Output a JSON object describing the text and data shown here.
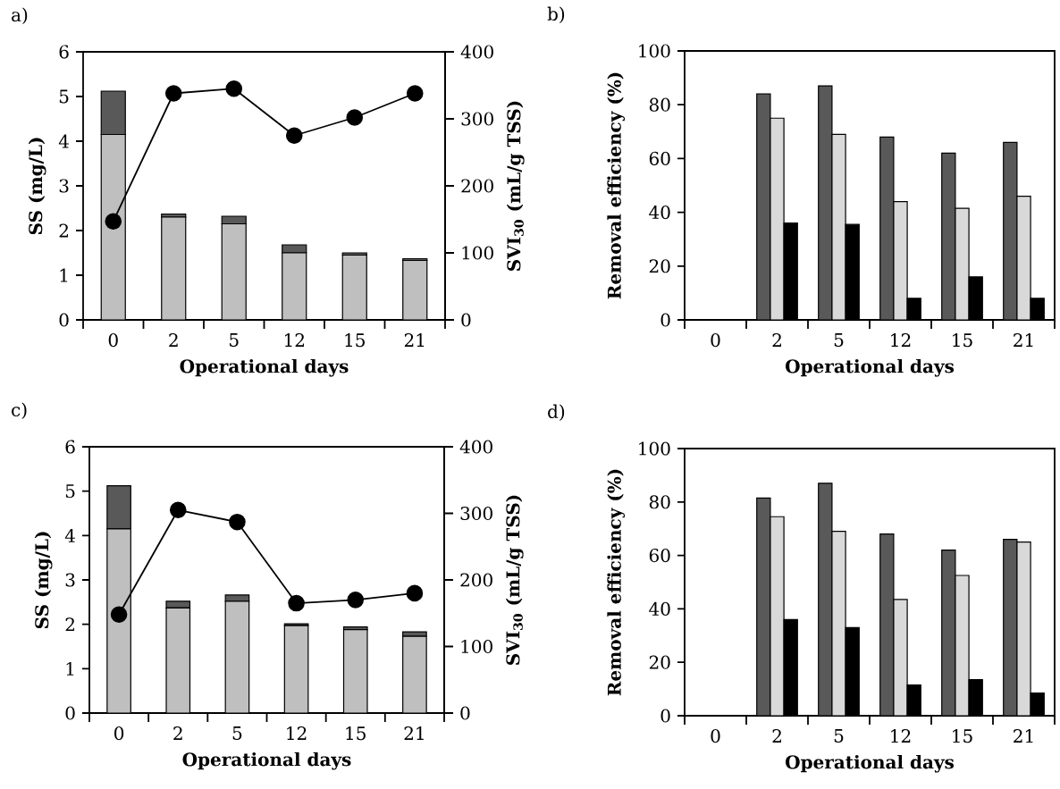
{
  "chart_data": [
    {
      "type": "bar",
      "title": "a)",
      "stacked": true,
      "categories": [
        "0",
        "2",
        "5",
        "12",
        "15",
        "21"
      ],
      "xlabel": "Operational days",
      "ylabel": "SS (mg/L)",
      "y2label": "SVI$_{30}$ (mL/g TSS)",
      "ylim": [
        0,
        6
      ],
      "yticks": [
        0,
        1,
        2,
        3,
        4,
        5,
        6
      ],
      "y2lim": [
        0,
        400
      ],
      "y2ticks": [
        0,
        100,
        200,
        300,
        400
      ],
      "series": [
        {
          "type": "bar",
          "color": "#bfbfbf",
          "values": [
            4.15,
            2.3,
            2.15,
            1.5,
            1.45,
            1.33
          ]
        },
        {
          "type": "bar",
          "color": "#595959",
          "values": [
            0.97,
            0.07,
            0.17,
            0.18,
            0.05,
            0.04
          ]
        },
        {
          "type": "line",
          "axis": "y2",
          "color": "#000000",
          "marker": "circle",
          "values": [
            147,
            338,
            345,
            275,
            302,
            338
          ]
        }
      ]
    },
    {
      "type": "bar",
      "title": "b)",
      "categories": [
        "0",
        "2",
        "5",
        "12",
        "15",
        "21"
      ],
      "xlabel": "Operational days",
      "ylabel": "Removal efficiency (%)",
      "ylim": [
        0,
        100
      ],
      "yticks": [
        0,
        20,
        40,
        60,
        80,
        100
      ],
      "series": [
        {
          "color": "#595959",
          "values": [
            null,
            84,
            87,
            68,
            62,
            66
          ]
        },
        {
          "color": "#d9d9d9",
          "values": [
            null,
            75,
            69,
            44,
            41.5,
            46
          ]
        },
        {
          "color": "#000000",
          "values": [
            null,
            36,
            35.5,
            8,
            16,
            8
          ]
        }
      ]
    },
    {
      "type": "bar",
      "title": "c)",
      "stacked": true,
      "categories": [
        "0",
        "2",
        "5",
        "12",
        "15",
        "21"
      ],
      "xlabel": "Operational days",
      "ylabel": "SS (mg/L)",
      "y2label": "SVI$_{30}$ (mL/g TSS)",
      "ylim": [
        0,
        6
      ],
      "yticks": [
        0,
        1,
        2,
        3,
        4,
        5,
        6
      ],
      "y2lim": [
        0,
        400
      ],
      "y2ticks": [
        0,
        100,
        200,
        300,
        400
      ],
      "series": [
        {
          "type": "bar",
          "color": "#bfbfbf",
          "values": [
            4.15,
            2.37,
            2.52,
            1.97,
            1.88,
            1.73
          ]
        },
        {
          "type": "bar",
          "color": "#595959",
          "values": [
            0.97,
            0.15,
            0.14,
            0.04,
            0.06,
            0.1
          ]
        },
        {
          "type": "line",
          "axis": "y2",
          "color": "#000000",
          "marker": "circle",
          "values": [
            148,
            305,
            287,
            165,
            170,
            180
          ]
        }
      ]
    },
    {
      "type": "bar",
      "title": "d)",
      "categories": [
        "0",
        "2",
        "5",
        "12",
        "15",
        "21"
      ],
      "xlabel": "Operational days",
      "ylabel": "Removal efficiency (%)",
      "ylim": [
        0,
        100
      ],
      "yticks": [
        0,
        20,
        40,
        60,
        80,
        100
      ],
      "series": [
        {
          "color": "#595959",
          "values": [
            null,
            81.5,
            87,
            68,
            62,
            66
          ]
        },
        {
          "color": "#d9d9d9",
          "values": [
            null,
            74.5,
            69,
            43.5,
            52.5,
            65
          ]
        },
        {
          "color": "#000000",
          "values": [
            null,
            36,
            33,
            11.5,
            13.5,
            8.5
          ]
        }
      ]
    }
  ]
}
